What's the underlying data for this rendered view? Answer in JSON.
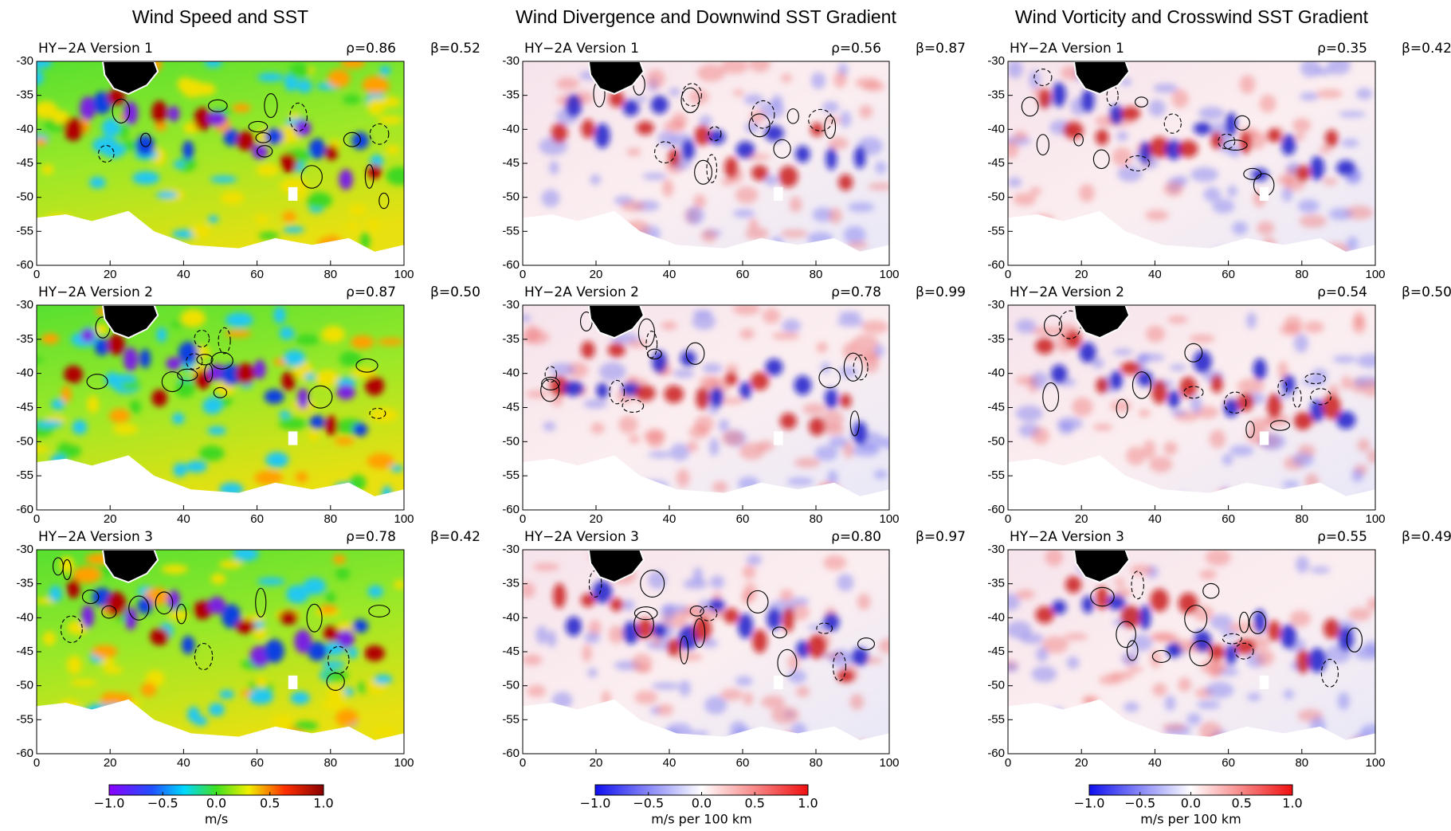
{
  "figure": {
    "xlim": [
      0,
      100
    ],
    "ylim": [
      -60,
      -30
    ],
    "xticks": [
      0,
      20,
      40,
      60,
      80,
      100
    ],
    "yticks": [
      -60,
      -55,
      -50,
      -45,
      -40,
      -35,
      -30
    ],
    "columns": [
      {
        "title": "Wind Speed and SST",
        "colorbar": {
          "colormap": "rainbow",
          "label": "m/s",
          "ticks": [
            {
              "value": -1,
              "label": "−1.0"
            },
            {
              "value": -0.5,
              "label": "−0.5"
            },
            {
              "value": 0,
              "label": "0.0"
            },
            {
              "value": 0.5,
              "label": "0.5"
            },
            {
              "value": 1,
              "label": "1.0"
            }
          ]
        },
        "panels": [
          {
            "label": "HY−2A Version 1",
            "rho": "ρ=0.86",
            "beta": "β=0.52"
          },
          {
            "label": "HY−2A Version 2",
            "rho": "ρ=0.87",
            "beta": "β=0.50"
          },
          {
            "label": "HY−2A Version 3",
            "rho": "ρ=0.78",
            "beta": "β=0.42"
          }
        ]
      },
      {
        "title": "Wind Divergence and Downwind SST Gradient",
        "colorbar": {
          "colormap": "bwr",
          "label": "m/s per 100 km",
          "ticks": [
            {
              "value": -1,
              "label": "−1.0"
            },
            {
              "value": -0.5,
              "label": "−0.5"
            },
            {
              "value": 0,
              "label": "0.0"
            },
            {
              "value": 0.5,
              "label": "0.5"
            },
            {
              "value": 1,
              "label": "1.0"
            }
          ]
        },
        "panels": [
          {
            "label": "HY−2A Version 1",
            "rho": "ρ=0.56",
            "beta": "β=0.87"
          },
          {
            "label": "HY−2A Version 2",
            "rho": "ρ=0.78",
            "beta": "β=0.99"
          },
          {
            "label": "HY−2A Version 3",
            "rho": "ρ=0.80",
            "beta": "β=0.97"
          }
        ]
      },
      {
        "title": "Wind Vorticity and Crosswind SST Gradient",
        "colorbar": {
          "colormap": "bwr",
          "label": "m/s per 100 km",
          "ticks": [
            {
              "value": -1,
              "label": "−1.0"
            },
            {
              "value": -0.5,
              "label": "−0.5"
            },
            {
              "value": 0,
              "label": "0.0"
            },
            {
              "value": 0.5,
              "label": "0.5"
            },
            {
              "value": 1,
              "label": "1.0"
            }
          ]
        },
        "panels": [
          {
            "label": "HY−2A Version 1",
            "rho": "ρ=0.35",
            "beta": "β=0.42"
          },
          {
            "label": "HY−2A Version 2",
            "rho": "ρ=0.54",
            "beta": "β=0.50"
          },
          {
            "label": "HY−2A Version 3",
            "rho": "ρ=0.55",
            "beta": "β=0.49"
          }
        ]
      }
    ]
  }
}
